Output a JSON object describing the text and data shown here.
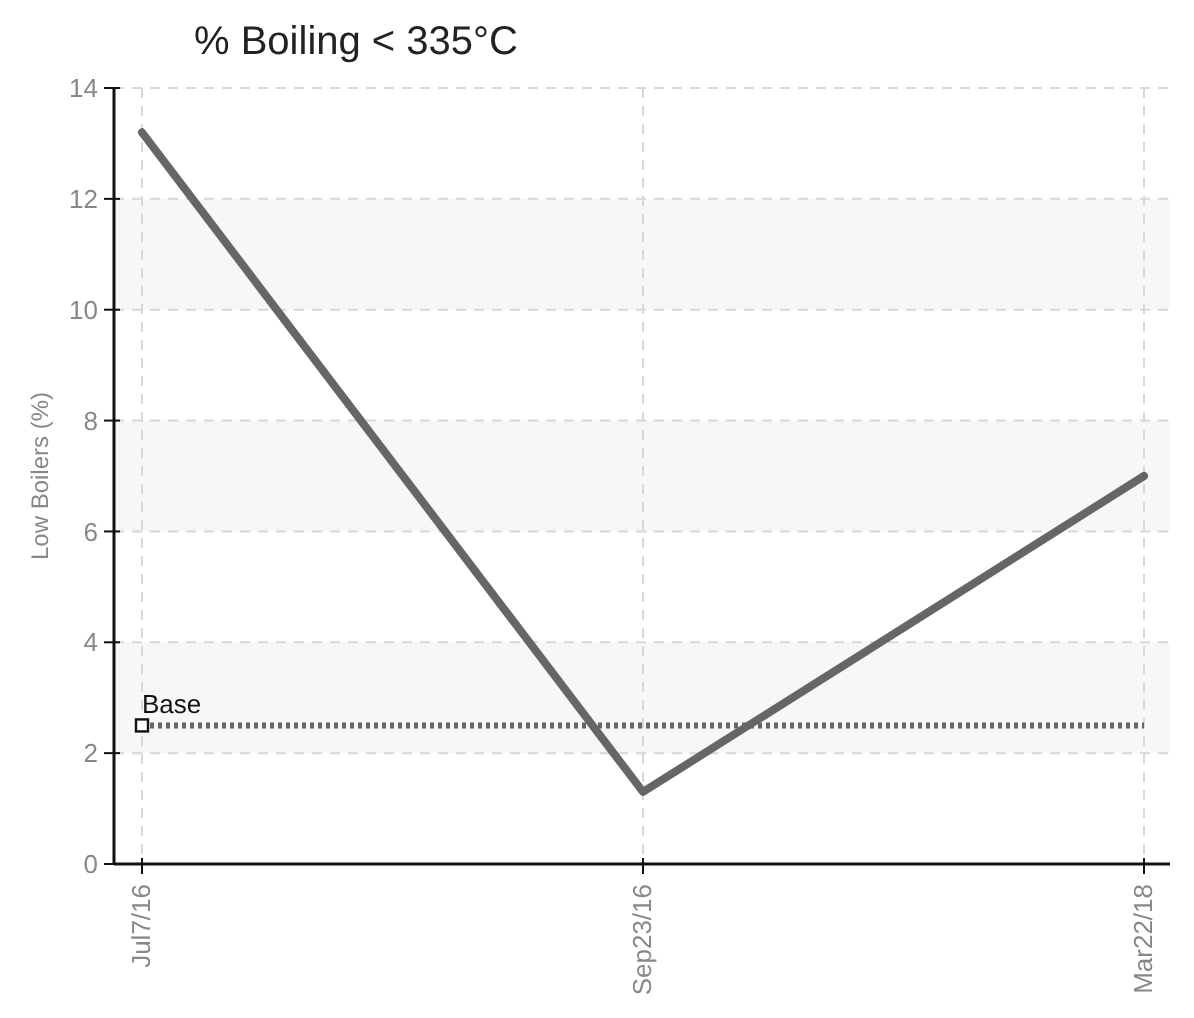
{
  "chart_data": {
    "type": "line",
    "title": "% Boiling < 335°C",
    "ylabel": "Low Boilers (%)",
    "categories": [
      "Jul7/16",
      "Sep23/16",
      "Mar22/18"
    ],
    "series": [
      {
        "color": "#666666",
        "values": [
          13.2,
          1.3,
          7.0
        ]
      }
    ],
    "ylim": [
      0,
      14
    ],
    "yticks": [
      0,
      2,
      4,
      6,
      8,
      10,
      12,
      14
    ],
    "grid": true,
    "marker": "none",
    "line_style": "solid",
    "ref_lines": [
      {
        "axis": "y",
        "value": 2.5,
        "label": "Base",
        "color": "#666666",
        "line_style": "dotted"
      }
    ]
  }
}
